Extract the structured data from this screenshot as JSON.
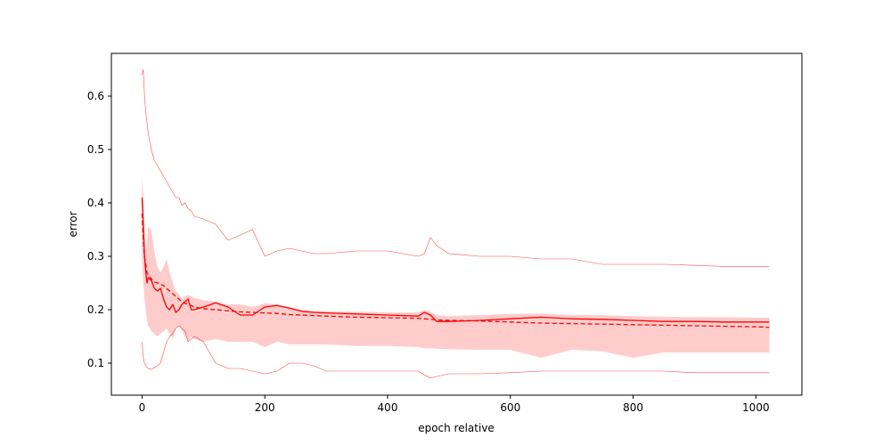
{
  "chart_data": {
    "type": "line",
    "title": "",
    "xlabel": "epoch relative",
    "ylabel": "error",
    "xlim": [
      -50,
      1075
    ],
    "ylim": [
      0.04,
      0.68
    ],
    "xticks": [
      0,
      200,
      400,
      600,
      800,
      1000
    ],
    "yticks": [
      0.1,
      0.2,
      0.3,
      0.4,
      0.5,
      0.6
    ],
    "grid": false,
    "legend": "none",
    "color": "#ff0000",
    "band_color": "#ffcccc",
    "x": [
      0,
      2,
      4,
      6,
      8,
      10,
      15,
      20,
      25,
      30,
      35,
      40,
      45,
      50,
      55,
      60,
      65,
      70,
      75,
      80,
      85,
      100,
      120,
      140,
      160,
      180,
      200,
      220,
      240,
      260,
      280,
      300,
      350,
      400,
      450,
      460,
      470,
      480,
      500,
      550,
      600,
      650,
      700,
      750,
      800,
      850,
      900,
      950,
      1000,
      1022
    ],
    "series": [
      {
        "style": "solid",
        "values": [
          0.41,
          0.36,
          0.3,
          0.27,
          0.25,
          0.26,
          0.255,
          0.24,
          0.235,
          0.24,
          0.22,
          0.205,
          0.2,
          0.21,
          0.195,
          0.2,
          0.21,
          0.215,
          0.22,
          0.2,
          0.2,
          0.205,
          0.213,
          0.205,
          0.19,
          0.19,
          0.205,
          0.208,
          0.203,
          0.197,
          0.195,
          0.194,
          0.192,
          0.19,
          0.188,
          0.195,
          0.19,
          0.178,
          0.178,
          0.18,
          0.183,
          0.186,
          0.183,
          0.182,
          0.18,
          0.178,
          0.178,
          0.177,
          0.177,
          0.177
        ]
      },
      {
        "style": "dashed",
        "values": [
          0.38,
          0.33,
          0.3,
          0.285,
          0.27,
          0.265,
          0.258,
          0.252,
          0.25,
          0.248,
          0.245,
          0.24,
          0.235,
          0.23,
          0.225,
          0.22,
          0.215,
          0.212,
          0.21,
          0.208,
          0.205,
          0.202,
          0.2,
          0.198,
          0.196,
          0.195,
          0.194,
          0.193,
          0.191,
          0.19,
          0.189,
          0.188,
          0.186,
          0.185,
          0.184,
          0.183,
          0.182,
          0.181,
          0.18,
          0.179,
          0.177,
          0.175,
          0.174,
          0.173,
          0.172,
          0.171,
          0.17,
          0.169,
          0.168,
          0.167
        ]
      },
      {
        "style": "thin",
        "values": [
          0.64,
          0.65,
          0.6,
          0.57,
          0.55,
          0.53,
          0.5,
          0.48,
          0.47,
          0.46,
          0.45,
          0.44,
          0.43,
          0.42,
          0.41,
          0.41,
          0.395,
          0.4,
          0.39,
          0.385,
          0.375,
          0.37,
          0.36,
          0.33,
          0.34,
          0.35,
          0.3,
          0.31,
          0.315,
          0.31,
          0.305,
          0.305,
          0.31,
          0.31,
          0.3,
          0.305,
          0.335,
          0.32,
          0.305,
          0.3,
          0.3,
          0.295,
          0.295,
          0.285,
          0.285,
          0.285,
          0.283,
          0.281,
          0.281,
          0.281
        ]
      },
      {
        "style": "thin",
        "values": [
          0.14,
          0.11,
          0.1,
          0.095,
          0.092,
          0.09,
          0.088,
          0.092,
          0.095,
          0.1,
          0.12,
          0.14,
          0.15,
          0.155,
          0.165,
          0.17,
          0.165,
          0.16,
          0.14,
          0.145,
          0.15,
          0.14,
          0.1,
          0.09,
          0.09,
          0.085,
          0.08,
          0.085,
          0.1,
          0.1,
          0.095,
          0.085,
          0.085,
          0.085,
          0.085,
          0.078,
          0.072,
          0.075,
          0.08,
          0.08,
          0.082,
          0.085,
          0.085,
          0.085,
          0.085,
          0.085,
          0.082,
          0.082,
          0.082,
          0.082
        ]
      }
    ],
    "band": {
      "lower": [
        0.3,
        0.25,
        0.22,
        0.2,
        0.18,
        0.17,
        0.16,
        0.155,
        0.15,
        0.155,
        0.16,
        0.165,
        0.155,
        0.145,
        0.165,
        0.17,
        0.16,
        0.15,
        0.14,
        0.15,
        0.145,
        0.14,
        0.145,
        0.14,
        0.14,
        0.14,
        0.13,
        0.14,
        0.135,
        0.135,
        0.135,
        0.135,
        0.132,
        0.132,
        0.13,
        0.128,
        0.128,
        0.127,
        0.126,
        0.125,
        0.125,
        0.11,
        0.125,
        0.122,
        0.11,
        0.12,
        0.12,
        0.12,
        0.12,
        0.12
      ],
      "upper": [
        0.445,
        0.42,
        0.35,
        0.31,
        0.33,
        0.355,
        0.35,
        0.31,
        0.28,
        0.27,
        0.28,
        0.295,
        0.27,
        0.25,
        0.235,
        0.23,
        0.22,
        0.225,
        0.228,
        0.225,
        0.222,
        0.218,
        0.215,
        0.21,
        0.21,
        0.205,
        0.212,
        0.21,
        0.205,
        0.2,
        0.198,
        0.197,
        0.196,
        0.195,
        0.195,
        0.2,
        0.196,
        0.19,
        0.188,
        0.19,
        0.192,
        0.193,
        0.19,
        0.19,
        0.188,
        0.187,
        0.186,
        0.186,
        0.185,
        0.185
      ]
    }
  }
}
